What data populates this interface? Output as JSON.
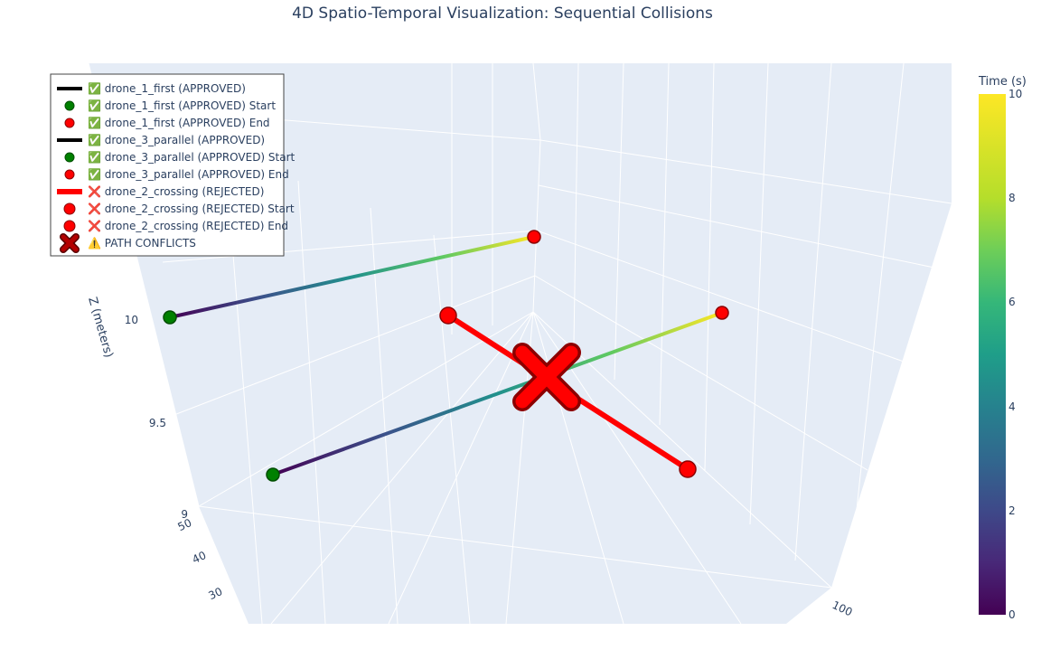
{
  "chart_data": {
    "type": "3d-scatter-line",
    "title": "4D Spatio-Temporal Visualization: Sequential Collisions",
    "axes": {
      "z": {
        "label": "Z (meters)",
        "ticks": [
          "9",
          "9.5",
          "10"
        ]
      },
      "y": {
        "ticks": [
          "30",
          "40",
          "50"
        ]
      },
      "x": {
        "ticks": [
          "100"
        ]
      }
    },
    "colorbar": {
      "title": "Time (s)",
      "range": [
        0,
        10
      ],
      "ticks": [
        "0",
        "2",
        "4",
        "6",
        "8",
        "10"
      ],
      "colorscale": "Viridis"
    },
    "legend": {
      "position": "top-left",
      "items": [
        {
          "label": "✅ drone_1_first (APPROVED)",
          "symbol": "line",
          "color": "#000000"
        },
        {
          "label": "✅ drone_1_first (APPROVED) Start",
          "symbol": "dot",
          "color": "#008000"
        },
        {
          "label": "✅ drone_1_first (APPROVED) End",
          "symbol": "dot",
          "color": "#ff0000"
        },
        {
          "label": "✅ drone_3_parallel (APPROVED)",
          "symbol": "line",
          "color": "#000000"
        },
        {
          "label": "✅ drone_3_parallel (APPROVED) Start",
          "symbol": "dot",
          "color": "#008000"
        },
        {
          "label": "✅ drone_3_parallel (APPROVED) End",
          "symbol": "dot",
          "color": "#ff0000"
        },
        {
          "label": "❌ drone_2_crossing (REJECTED)",
          "symbol": "thickline",
          "color": "#ff0000"
        },
        {
          "label": "❌ drone_2_crossing (REJECTED) Start",
          "symbol": "bigdot",
          "color": "#ff0000"
        },
        {
          "label": "❌ drone_2_crossing (REJECTED) End",
          "symbol": "bigdot",
          "color": "#ff0000"
        },
        {
          "label": "⚠️ PATH CONFLICTS",
          "symbol": "x",
          "color": "#8b0000"
        }
      ]
    },
    "series": [
      {
        "name": "✅ drone_1_first (APPROVED)",
        "t": [
          0,
          10
        ],
        "colorscale": "Viridis"
      },
      {
        "name": "✅ drone_3_parallel (APPROVED)",
        "t": [
          0,
          10
        ],
        "colorscale": "Viridis"
      },
      {
        "name": "❌ drone_2_crossing (REJECTED)",
        "color": "#ff0000"
      }
    ],
    "conflicts": {
      "name": "⚠️ PATH CONFLICTS",
      "count": 1
    }
  }
}
